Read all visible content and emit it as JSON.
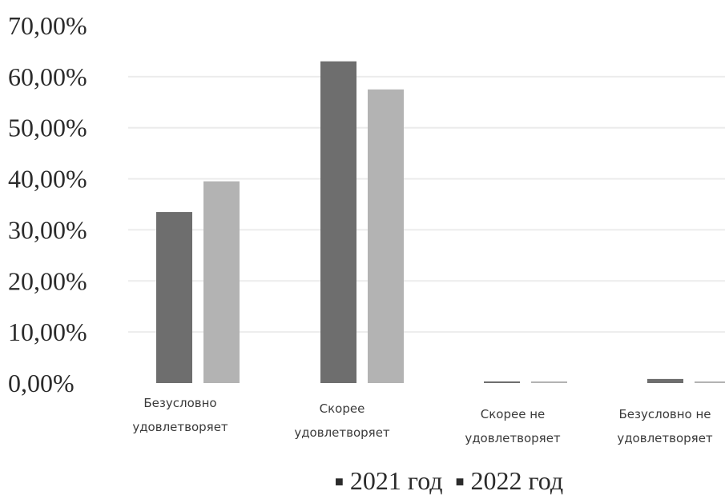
{
  "chart_data": {
    "type": "bar",
    "title": "",
    "xlabel": "",
    "ylabel": "",
    "ylim": [
      0,
      70
    ],
    "y_ticks": [
      "0,00%",
      "10,00%",
      "20,00%",
      "30,00%",
      "40,00%",
      "50,00%",
      "60,00%",
      "70,00%"
    ],
    "categories": [
      [
        "Безусловно",
        "удовлетворяет"
      ],
      [
        "Скорее",
        "удовлетворяет"
      ],
      [
        "Скорее не",
        "удовлетворяет"
      ],
      [
        "Безусловно не",
        "удовлетворяет"
      ]
    ],
    "series": [
      {
        "name": "2021 год",
        "color": "#6e6e6e",
        "values": [
          33.5,
          63.0,
          0.3,
          0.8
        ]
      },
      {
        "name": "2022 год",
        "color": "#b3b3b3",
        "values": [
          39.5,
          57.5,
          0.2,
          0.2
        ]
      }
    ],
    "grid": true,
    "legend_position": "bottom"
  }
}
